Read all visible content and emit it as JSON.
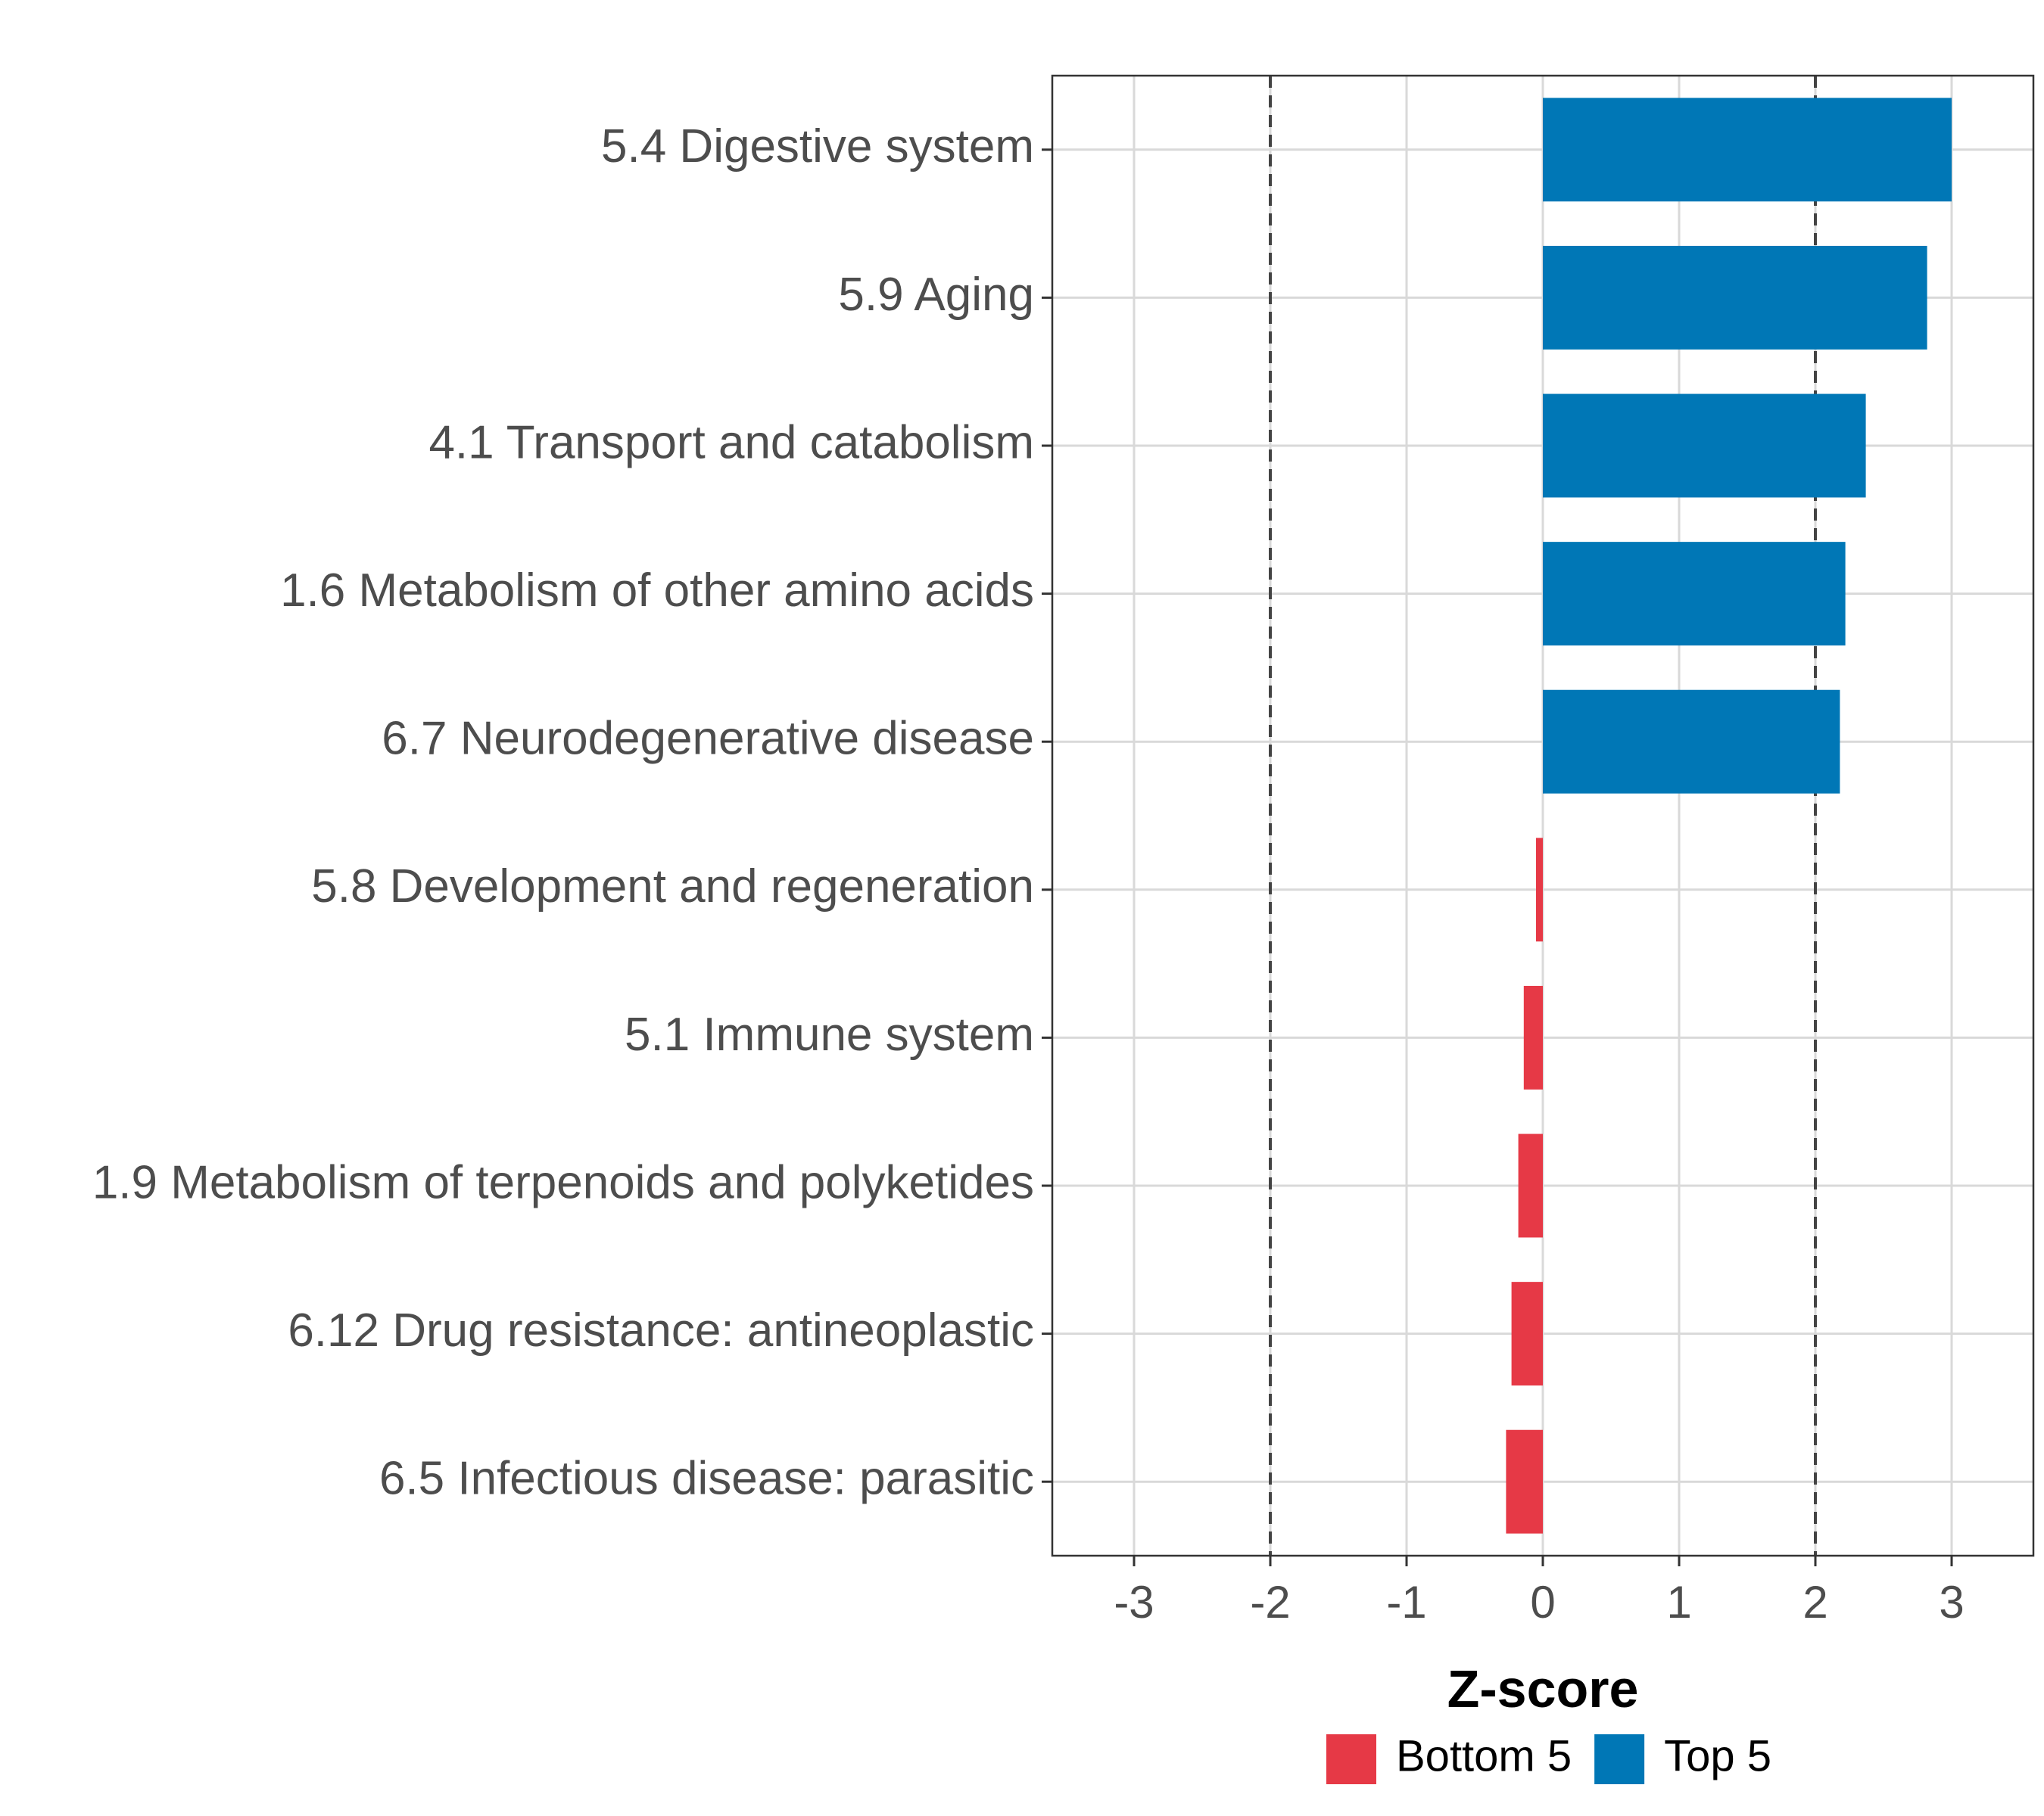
{
  "chart_data": {
    "type": "bar",
    "orientation": "horizontal",
    "categories": [
      "5.4 Digestive system",
      "5.9 Aging",
      "4.1 Transport and catabolism",
      "1.6 Metabolism of other amino acids",
      "6.7 Neurodegenerative disease",
      "5.8 Development and regeneration",
      "5.1 Immune system",
      "1.9 Metabolism of terpenoids and polyketides",
      "6.12 Drug resistance: antineoplastic",
      "6.5 Infectious disease: parasitic"
    ],
    "values": [
      3.0,
      2.82,
      2.37,
      2.22,
      2.18,
      -0.05,
      -0.14,
      -0.18,
      -0.23,
      -0.27
    ],
    "groups": [
      "Top 5",
      "Top 5",
      "Top 5",
      "Top 5",
      "Top 5",
      "Bottom 5",
      "Bottom 5",
      "Bottom 5",
      "Bottom 5",
      "Bottom 5"
    ],
    "xlabel": "Z-score",
    "ylabel": "",
    "xlim": [
      -3.6,
      3.6
    ],
    "xticks": [
      "-3",
      "-2",
      "-1",
      "0",
      "1",
      "2",
      "3"
    ],
    "xtick_values": [
      -3,
      -2,
      -1,
      0,
      1,
      2,
      3
    ],
    "reference_lines": [
      -2,
      2
    ],
    "grid": true,
    "legend": {
      "placement": "bottom",
      "entries": [
        {
          "label": "Bottom 5",
          "color": "#e63946"
        },
        {
          "label": "Top 5",
          "color": "#0077b6"
        }
      ]
    },
    "colors": {
      "Top 5": "#0077b6",
      "Bottom 5": "#e63946"
    }
  }
}
